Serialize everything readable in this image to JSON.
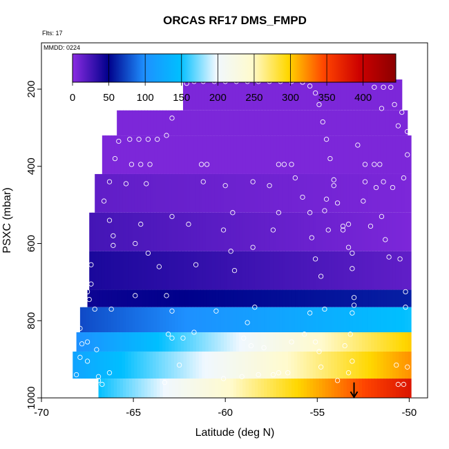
{
  "chart_data": {
    "type": "heatmap",
    "title": "ORCAS RF17 DMS_FMPD",
    "flight_note": "Flts: 17",
    "date_note": "MMDD: 0224",
    "xlabel": "Latitude (deg N)",
    "ylabel": "PSXC (mbar)",
    "xlim": [
      -70,
      -49
    ],
    "ylim": [
      1000,
      80
    ],
    "x_ticks": [
      "-70",
      "-65",
      "-60",
      "-55",
      "-50"
    ],
    "x_tick_values": [
      -70,
      -65,
      -60,
      -55,
      -50
    ],
    "y_ticks": [
      "200",
      "400",
      "600",
      "800",
      "1000"
    ],
    "y_tick_values": [
      200,
      400,
      600,
      800,
      1000
    ],
    "colorbar": {
      "ticks": [
        "0",
        "50",
        "100",
        "150",
        "200",
        "250",
        "300",
        "350",
        "400"
      ],
      "tick_values": [
        0,
        50,
        100,
        150,
        200,
        250,
        300,
        350,
        400
      ],
      "range": [
        0,
        445
      ],
      "colors": [
        "#8A2BE2",
        "#00008B",
        "#1E90FF",
        "#00BFFF",
        "#F0F8FF",
        "#FFFACD",
        "#FFD700",
        "#FF4500",
        "#CC0000",
        "#8B0000"
      ]
    },
    "layers": [
      {
        "p_top": 175,
        "p_bot": 255,
        "x0": -62.3,
        "x1": -50.4,
        "v_start": 5,
        "v_end": 5
      },
      {
        "p_top": 255,
        "p_bot": 320,
        "x0": -65.9,
        "x1": -50.1,
        "v_start": 5,
        "v_end": 5
      },
      {
        "p_top": 320,
        "p_bot": 420,
        "x0": -66.7,
        "x1": -49.9,
        "v_start": 5,
        "v_end": 5
      },
      {
        "p_top": 420,
        "p_bot": 520,
        "x0": -67.1,
        "x1": -49.9,
        "v_start": 15,
        "v_end": 5
      },
      {
        "p_top": 520,
        "p_bot": 620,
        "x0": -67.4,
        "x1": -49.9,
        "v_start": 25,
        "v_end": 5
      },
      {
        "p_top": 620,
        "p_bot": 720,
        "x0": -67.4,
        "x1": -49.9,
        "v_start": 40,
        "v_end": 15
      },
      {
        "p_top": 720,
        "p_bot": 765,
        "x0": -67.5,
        "x1": -49.9,
        "v_start": 45,
        "v_end": 60
      },
      {
        "p_top": 765,
        "p_bot": 830,
        "x0": -67.9,
        "x1": -49.9,
        "v_start": 75,
        "v_end": 150
      },
      {
        "p_top": 830,
        "p_bot": 880,
        "x0": -68.1,
        "x1": -49.9,
        "v_start": 100,
        "v_end": 300
      },
      {
        "p_top": 880,
        "p_bot": 950,
        "x0": -68.3,
        "x1": -49.9,
        "v_start": 120,
        "v_end": 320
      },
      {
        "p_top": 950,
        "p_bot": 1000,
        "x0": -66.9,
        "x1": -49.9,
        "v_start": 150,
        "v_end": 380
      }
    ],
    "observation_points": [
      [
        -62.1,
        185
      ],
      [
        -61.7,
        180
      ],
      [
        -61.2,
        180
      ],
      [
        -60.6,
        180
      ],
      [
        -60.0,
        180
      ],
      [
        -59.4,
        180
      ],
      [
        -58.8,
        180
      ],
      [
        -58.2,
        180
      ],
      [
        -57.6,
        180
      ],
      [
        -57.0,
        180
      ],
      [
        -56.4,
        180
      ],
      [
        -55.8,
        182
      ],
      [
        -55.4,
        192
      ],
      [
        -55.1,
        210
      ],
      [
        -54.9,
        240
      ],
      [
        -54.7,
        285
      ],
      [
        -54.5,
        330
      ],
      [
        -54.3,
        380
      ],
      [
        -54.1,
        435
      ],
      [
        -53.9,
        495
      ],
      [
        -53.6,
        555
      ],
      [
        -53.3,
        610
      ],
      [
        -53.1,
        665
      ],
      [
        -53.0,
        740
      ],
      [
        -62.6,
        225
      ],
      [
        -62.9,
        275
      ],
      [
        -63.2,
        320
      ],
      [
        -63.7,
        330
      ],
      [
        -64.2,
        330
      ],
      [
        -64.7,
        330
      ],
      [
        -65.2,
        330
      ],
      [
        -65.8,
        335
      ],
      [
        -66.0,
        380
      ],
      [
        -65.1,
        395
      ],
      [
        -64.6,
        395
      ],
      [
        -64.1,
        395
      ],
      [
        -65.4,
        445
      ],
      [
        -66.3,
        440
      ],
      [
        -66.6,
        490
      ],
      [
        -64.3,
        445
      ],
      [
        -61.3,
        395
      ],
      [
        -61.0,
        395
      ],
      [
        -61.2,
        440
      ],
      [
        -60.0,
        450
      ],
      [
        -59.6,
        520
      ],
      [
        -58.5,
        440
      ],
      [
        -57.6,
        450
      ],
      [
        -57.1,
        395
      ],
      [
        -56.8,
        395
      ],
      [
        -56.4,
        395
      ],
      [
        -56.2,
        430
      ],
      [
        -55.8,
        480
      ],
      [
        -55.4,
        520
      ],
      [
        -55.3,
        585
      ],
      [
        -55.1,
        640
      ],
      [
        -54.8,
        685
      ],
      [
        -54.6,
        515
      ],
      [
        -54.4,
        565
      ],
      [
        -54.1,
        450
      ],
      [
        -52.4,
        395
      ],
      [
        -51.9,
        395
      ],
      [
        -51.6,
        395
      ],
      [
        -52.8,
        345
      ],
      [
        -52.4,
        440
      ],
      [
        -52.5,
        490
      ],
      [
        -51.8,
        455
      ],
      [
        -51.4,
        440
      ],
      [
        -51.5,
        530
      ],
      [
        -51.3,
        590
      ],
      [
        -51.1,
        635
      ],
      [
        -50.5,
        640
      ],
      [
        -50.2,
        725
      ],
      [
        -50.2,
        765
      ],
      [
        -50.6,
        295
      ],
      [
        -50.4,
        260
      ],
      [
        -50.1,
        310
      ],
      [
        -50.1,
        370
      ],
      [
        -50.3,
        430
      ],
      [
        -51.0,
        195
      ],
      [
        -51.4,
        195
      ],
      [
        -51.9,
        195
      ],
      [
        -51.5,
        250
      ],
      [
        -50.8,
        240
      ],
      [
        -50.9,
        455
      ],
      [
        -52.1,
        555
      ],
      [
        -53.1,
        625
      ],
      [
        -53.3,
        550
      ],
      [
        -53.6,
        565
      ],
      [
        -54.5,
        485
      ],
      [
        -53.0,
        760
      ],
      [
        -53.2,
        835
      ],
      [
        -53.5,
        865
      ],
      [
        -53.3,
        935
      ],
      [
        -54.6,
        770
      ],
      [
        -55.1,
        855
      ],
      [
        -54.9,
        880
      ],
      [
        -55.4,
        780
      ],
      [
        -62.0,
        550
      ],
      [
        -61.6,
        655
      ],
      [
        -58.5,
        610
      ],
      [
        -58.4,
        765
      ],
      [
        -57.4,
        565
      ],
      [
        -57.1,
        520
      ],
      [
        -59.5,
        670
      ],
      [
        -59.7,
        620
      ],
      [
        -60.1,
        565
      ],
      [
        -64.6,
        550
      ],
      [
        -64.9,
        600
      ],
      [
        -66.1,
        580
      ],
      [
        -66.3,
        540
      ],
      [
        -66.1,
        605
      ],
      [
        -62.9,
        530
      ],
      [
        -64.2,
        625
      ],
      [
        -63.6,
        660
      ],
      [
        -63.2,
        735
      ],
      [
        -64.9,
        735
      ],
      [
        -66.2,
        770
      ],
      [
        -67.1,
        770
      ],
      [
        -67.3,
        655
      ],
      [
        -67.4,
        745
      ],
      [
        -67.5,
        725
      ],
      [
        -67.3,
        705
      ],
      [
        -67.9,
        820
      ],
      [
        -67.8,
        860
      ],
      [
        -67.9,
        895
      ],
      [
        -68.1,
        940
      ],
      [
        -67.0,
        875
      ],
      [
        -67.5,
        855
      ],
      [
        -67.5,
        905
      ],
      [
        -66.9,
        955
      ],
      [
        -66.7,
        965
      ],
      [
        -66.9,
        945
      ],
      [
        -66.3,
        935
      ],
      [
        -62.9,
        775
      ],
      [
        -63.1,
        835
      ],
      [
        -62.9,
        845
      ],
      [
        -62.3,
        845
      ],
      [
        -61.7,
        830
      ],
      [
        -60.5,
        775
      ],
      [
        -59.0,
        845
      ],
      [
        -58.6,
        865
      ],
      [
        -58.8,
        805
      ],
      [
        -57.9,
        870
      ],
      [
        -57.1,
        935
      ],
      [
        -57.4,
        940
      ],
      [
        -56.6,
        935
      ],
      [
        -56.4,
        855
      ],
      [
        -55.7,
        835
      ],
      [
        -54.8,
        920
      ],
      [
        -53.9,
        955
      ],
      [
        -53.1,
        780
      ],
      [
        -53.1,
        905
      ],
      [
        -50.1,
        920
      ],
      [
        -50.3,
        965
      ],
      [
        -50.6,
        965
      ],
      [
        -50.7,
        915
      ],
      [
        -63.3,
        960
      ],
      [
        -58.2,
        940
      ],
      [
        -59.1,
        945
      ],
      [
        -60.1,
        950
      ],
      [
        -62.5,
        915
      ]
    ],
    "marker": {
      "x": -53.0,
      "p_top": 960,
      "p_bot": 1000
    }
  }
}
